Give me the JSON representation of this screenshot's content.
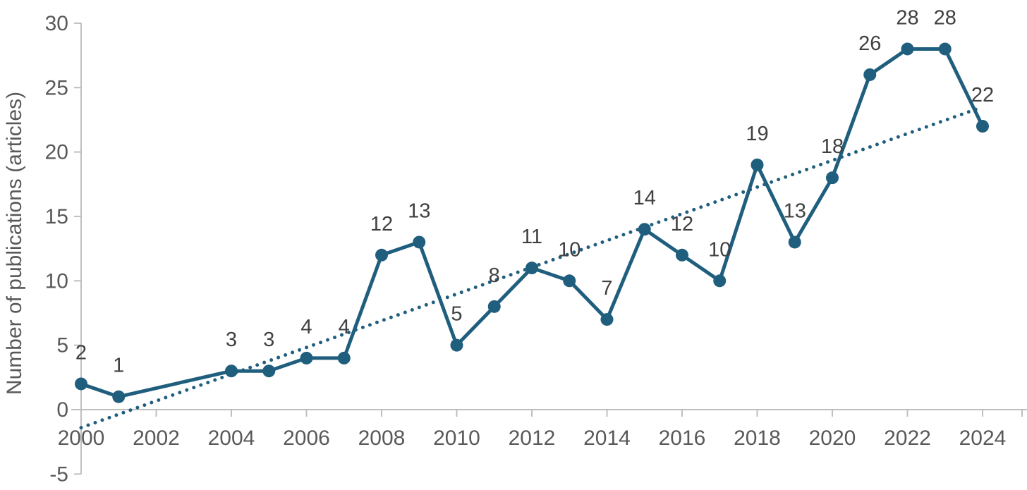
{
  "chart_data": {
    "type": "line",
    "title": "",
    "xlabel": "",
    "ylabel": "Number of publications (articles)",
    "x": [
      2000,
      2001,
      2002,
      2003,
      2004,
      2005,
      2006,
      2007,
      2008,
      2009,
      2010,
      2011,
      2012,
      2013,
      2014,
      2015,
      2016,
      2017,
      2018,
      2019,
      2020,
      2021,
      2022,
      2023,
      2024
    ],
    "series": [
      {
        "name": "Number of publications",
        "values": [
          2,
          1,
          null,
          null,
          3,
          3,
          4,
          4,
          12,
          13,
          5,
          8,
          11,
          10,
          7,
          14,
          12,
          10,
          19,
          13,
          18,
          26,
          28,
          28,
          22
        ],
        "color": "#205e7e",
        "marker": "circle",
        "line_style": "solid",
        "data_labels_shown": true
      }
    ],
    "trendline": {
      "type": "linear",
      "style": "dotted",
      "color": "#205e7e",
      "y_at_2000": -1.4,
      "y_at_2024": 23.5
    },
    "xlim": [
      2000,
      2024
    ],
    "ylim": [
      -5,
      30
    ],
    "xticks": [
      2000,
      2002,
      2004,
      2006,
      2008,
      2010,
      2012,
      2014,
      2016,
      2018,
      2020,
      2022,
      2024
    ],
    "yticks": [
      -5,
      0,
      5,
      10,
      15,
      20,
      25,
      30
    ],
    "grid": false,
    "legend": "none"
  },
  "style": {
    "background_color": "#ffffff",
    "axis_line_color": "#bfbfbf",
    "tick_label_color": "#595959",
    "axis_title_color": "#595959",
    "data_label_color": "#404040"
  }
}
